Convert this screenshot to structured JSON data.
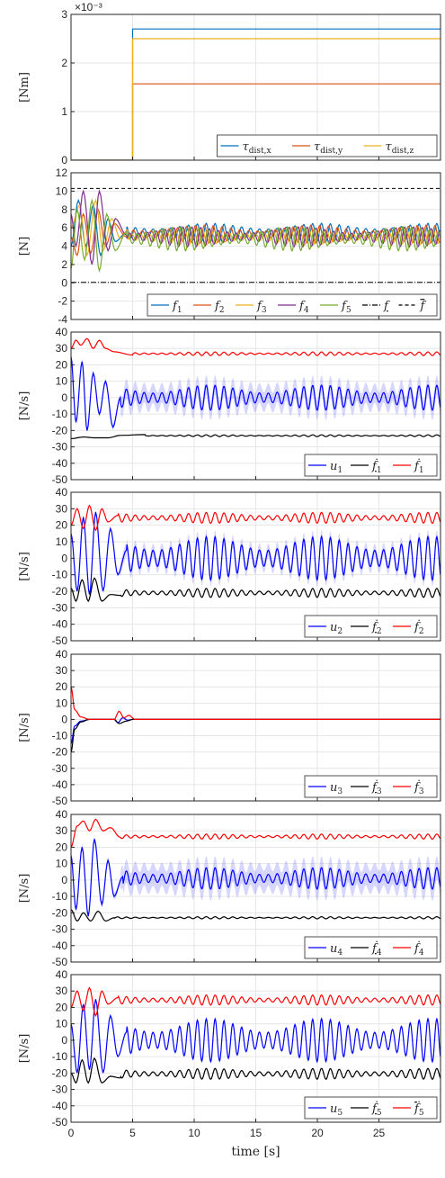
{
  "figure": {
    "xlabel": "time [s]",
    "xticks": [
      "0",
      "5",
      "10",
      "15",
      "20",
      "25"
    ],
    "xlim": [
      0,
      30
    ]
  },
  "chart_data": [
    {
      "type": "line",
      "panel": "torque",
      "ylabel": "[Nm]",
      "exponent_label": "×10⁻³",
      "ylim": [
        0,
        3
      ],
      "yticks": [
        "0",
        "1",
        "2",
        "3"
      ],
      "grid": true,
      "legend": "bottom-right",
      "series": [
        {
          "name": "τdist,x",
          "legend_main": "τ",
          "legend_sub": "dist,x",
          "color": "#0072BD",
          "x": [
            0,
            5,
            5,
            30
          ],
          "y": [
            0,
            0,
            2.7,
            2.7
          ]
        },
        {
          "name": "τdist,y",
          "legend_main": "τ",
          "legend_sub": "dist,y",
          "color": "#D95319",
          "x": [
            0,
            5,
            5,
            30
          ],
          "y": [
            0,
            0,
            1.57,
            1.57
          ]
        },
        {
          "name": "τdist,z",
          "legend_main": "τ",
          "legend_sub": "dist,z",
          "color": "#EDB120",
          "x": [
            0,
            5,
            5,
            30
          ],
          "y": [
            0,
            0,
            2.5,
            2.5
          ]
        }
      ]
    },
    {
      "type": "line",
      "panel": "forces",
      "ylabel": "[N]",
      "ylim": [
        -4,
        12
      ],
      "yticks": [
        "-4",
        "-2",
        "0",
        "2",
        "4",
        "6",
        "8",
        "10",
        "12"
      ],
      "grid": true,
      "legend": "bottom-right",
      "bounds": {
        "upper": 10.3,
        "lower": 0.05
      },
      "series": [
        {
          "name": "f1",
          "legend_main": "f",
          "legend_sub": "1",
          "color": "#0072BD",
          "pre": [
            [
              0,
              4
            ],
            [
              0.6,
              9
            ],
            [
              1.2,
              4
            ],
            [
              1.8,
              8.5
            ],
            [
              2.4,
              3
            ],
            [
              3,
              7
            ],
            [
              3.6,
              4.5
            ],
            [
              4.5,
              5.5
            ]
          ],
          "mean": 5.5,
          "amp": 0.9,
          "period": 0.72,
          "phase": 0
        },
        {
          "name": "f2",
          "legend_main": "f",
          "legend_sub": "2",
          "color": "#D95319",
          "pre": [
            [
              0,
              5
            ],
            [
              0.5,
              3
            ],
            [
              1,
              7.5
            ],
            [
              1.6,
              3.2
            ],
            [
              2.2,
              8
            ],
            [
              2.8,
              4
            ],
            [
              3.5,
              6.5
            ],
            [
              4.5,
              5
            ]
          ],
          "mean": 5.3,
          "amp": 0.9,
          "period": 0.72,
          "phase": 1.3
        },
        {
          "name": "f3",
          "legend_main": "f",
          "legend_sub": "3",
          "color": "#EDB120",
          "pre": [
            [
              0,
              6
            ],
            [
              0.7,
              8.5
            ],
            [
              1.3,
              3
            ],
            [
              2,
              9
            ],
            [
              2.6,
              3.5
            ],
            [
              3.3,
              7
            ],
            [
              4,
              4.8
            ],
            [
              4.6,
              5.8
            ]
          ],
          "mean": 5.0,
          "amp": 0.8,
          "period": 0.72,
          "phase": 2.6
        },
        {
          "name": "f4",
          "legend_main": "f",
          "legend_sub": "4",
          "color": "#7E2F8E",
          "pre": [
            [
              0,
              7.5
            ],
            [
              0.4,
              4
            ],
            [
              1,
              10
            ],
            [
              1.7,
              2
            ],
            [
              2.3,
              10
            ],
            [
              3,
              3.5
            ],
            [
              3.6,
              7
            ],
            [
              4.5,
              5.2
            ]
          ],
          "mean": 5.0,
          "amp": 1.0,
          "period": 0.72,
          "phase": 3.9
        },
        {
          "name": "f5",
          "legend_main": "f",
          "legend_sub": "5",
          "color": "#77AC30",
          "pre": [
            [
              0,
              1.5
            ],
            [
              0.5,
              8
            ],
            [
              1.1,
              2.5
            ],
            [
              1.7,
              9
            ],
            [
              2.3,
              1.3
            ],
            [
              2.9,
              7.5
            ],
            [
              3.6,
              3.5
            ],
            [
              4.5,
              5.5
            ]
          ],
          "mean": 4.8,
          "amp": 1.2,
          "period": 0.72,
          "phase": 5.2
        }
      ],
      "bound_legend": [
        {
          "name": "f lower",
          "legend_main": "f",
          "style": "dashdot",
          "underline": true
        },
        {
          "name": "f upper",
          "legend_main": "f",
          "style": "dashed",
          "overline": true
        }
      ]
    },
    {
      "type": "line",
      "panel": "u1",
      "ylabel": "[N/s]",
      "ylim": [
        -50,
        40
      ],
      "yticks": [
        "-50",
        "-40",
        "-30",
        "-20",
        "-10",
        "0",
        "10",
        "20",
        "30",
        "40"
      ],
      "grid": true,
      "legend": "bottom-right",
      "series": [
        {
          "name": "u1",
          "legend_main": "u",
          "legend_sub": "1",
          "color": "#0000FF",
          "mean": 0,
          "amp": 7,
          "period": 0.72,
          "band": 6,
          "pre": [
            [
              0,
              25
            ],
            [
              0.4,
              -15
            ],
            [
              0.9,
              22
            ],
            [
              1.3,
              -20
            ],
            [
              1.8,
              15
            ],
            [
              2.3,
              -10
            ],
            [
              2.8,
              10
            ],
            [
              3.4,
              -18
            ],
            [
              4,
              0
            ]
          ]
        },
        {
          "name": "f1 dot lower",
          "legend_main": "ḟ",
          "legend_sub": "1",
          "underline": true,
          "color": "#000000",
          "mean": -23.2,
          "amp": 0.5,
          "period": 0.72,
          "pre": [
            [
              0,
              -25
            ],
            [
              1,
              -24
            ],
            [
              2,
              -24.5
            ],
            [
              3,
              -24.5
            ],
            [
              4,
              -23
            ],
            [
              6,
              -22.5
            ]
          ]
        },
        {
          "name": "f1 dot upper",
          "legend_main": "ḟ",
          "legend_sub": "1",
          "color": "#FF0000",
          "mean": 26.8,
          "amp": 1,
          "period": 0.72,
          "pre": [
            [
              0,
              30
            ],
            [
              0.4,
              35
            ],
            [
              0.8,
              32
            ],
            [
              1.3,
              36
            ],
            [
              1.8,
              30
            ],
            [
              2.3,
              35
            ],
            [
              2.8,
              30
            ],
            [
              3.5,
              28
            ],
            [
              5,
              26
            ]
          ]
        }
      ]
    },
    {
      "type": "line",
      "panel": "u2",
      "ylabel": "[N/s]",
      "ylim": [
        -50,
        40
      ],
      "yticks": [
        "-50",
        "-40",
        "-30",
        "-20",
        "-10",
        "0",
        "10",
        "20",
        "30",
        "40"
      ],
      "grid": true,
      "legend": "bottom-right",
      "series": [
        {
          "name": "u2",
          "legend_main": "u",
          "legend_sub": "2",
          "color": "#0000FF",
          "mean": 0,
          "amp": 12,
          "period": 0.72,
          "band": 4,
          "pre": [
            [
              0,
              15
            ],
            [
              0.5,
              -20
            ],
            [
              1,
              25
            ],
            [
              1.5,
              -22
            ],
            [
              2,
              28
            ],
            [
              2.6,
              -20
            ],
            [
              3.2,
              18
            ],
            [
              3.8,
              -10
            ],
            [
              4.5,
              5
            ]
          ]
        },
        {
          "name": "f2 dot lower",
          "legend_main": "ḟ",
          "legend_sub": "2",
          "underline": true,
          "color": "#000000",
          "mean": -21,
          "amp": 2.5,
          "period": 0.72,
          "pre": [
            [
              0,
              -18
            ],
            [
              0.4,
              -26
            ],
            [
              0.9,
              -13
            ],
            [
              1.4,
              -26
            ],
            [
              1.9,
              -12
            ],
            [
              2.5,
              -26
            ],
            [
              3.2,
              -22
            ],
            [
              4,
              -22.5
            ]
          ]
        },
        {
          "name": "f2 dot upper",
          "legend_main": "ḟ",
          "legend_sub": "2",
          "color": "#FF0000",
          "mean": 24.5,
          "amp": 3,
          "period": 0.72,
          "pre": [
            [
              0,
              20
            ],
            [
              0.5,
              30
            ],
            [
              1,
              18
            ],
            [
              1.5,
              32
            ],
            [
              2,
              17
            ],
            [
              2.5,
              30
            ],
            [
              3,
              22
            ],
            [
              3.8,
              26
            ]
          ]
        }
      ]
    },
    {
      "type": "line",
      "panel": "u3",
      "ylabel": "[N/s]",
      "ylim": [
        -50,
        40
      ],
      "yticks": [
        "-50",
        "-40",
        "-30",
        "-20",
        "-10",
        "0",
        "10",
        "20",
        "30",
        "40"
      ],
      "grid": true,
      "legend": "bottom-right",
      "series": [
        {
          "name": "u3",
          "legend_main": "u",
          "legend_sub": "3",
          "color": "#0000FF",
          "mean": 0,
          "amp": 0,
          "period": 0.72,
          "pre": [
            [
              0,
              -15
            ],
            [
              0.3,
              -4
            ],
            [
              0.8,
              -1
            ],
            [
              1.5,
              0
            ],
            [
              3.5,
              0
            ],
            [
              3.8,
              -2
            ],
            [
              4.2,
              1
            ],
            [
              4.6,
              -0.5
            ],
            [
              5,
              0
            ]
          ]
        },
        {
          "name": "f3 dot lower",
          "legend_main": "ḟ",
          "legend_sub": "3",
          "underline": true,
          "color": "#000000",
          "mean": 0,
          "amp": 0,
          "period": 0.72,
          "pre": [
            [
              0,
              -20
            ],
            [
              0.3,
              -6
            ],
            [
              0.8,
              -1.5
            ],
            [
              1.5,
              0
            ],
            [
              3.5,
              0
            ],
            [
              3.9,
              -2.5
            ],
            [
              4.5,
              -1
            ],
            [
              5,
              0
            ]
          ]
        },
        {
          "name": "f3 dot upper",
          "legend_main": "ḟ",
          "legend_sub": "3",
          "color": "#FF0000",
          "mean": 0,
          "amp": 0,
          "period": 0.72,
          "pre": [
            [
              0,
              20
            ],
            [
              0.3,
              6
            ],
            [
              0.8,
              1.5
            ],
            [
              1.5,
              0
            ],
            [
              3.5,
              0
            ],
            [
              3.9,
              5
            ],
            [
              4.3,
              1
            ],
            [
              4.7,
              2.5
            ],
            [
              5.2,
              0
            ]
          ]
        }
      ]
    },
    {
      "type": "line",
      "panel": "u4",
      "ylabel": "[N/s]",
      "ylim": [
        -50,
        40
      ],
      "yticks": [
        "-50",
        "-40",
        "-30",
        "-20",
        "-10",
        "0",
        "10",
        "20",
        "30",
        "40"
      ],
      "grid": true,
      "legend": "bottom-right",
      "series": [
        {
          "name": "u4",
          "legend_main": "u",
          "legend_sub": "4",
          "color": "#0000FF",
          "mean": 1,
          "amp": 6,
          "period": 0.72,
          "band": 7,
          "pre": [
            [
              0,
              15
            ],
            [
              0.4,
              -18
            ],
            [
              0.9,
              20
            ],
            [
              1.4,
              -22
            ],
            [
              1.9,
              25
            ],
            [
              2.5,
              -15
            ],
            [
              3,
              12
            ],
            [
              3.5,
              -10
            ],
            [
              4.2,
              2
            ]
          ]
        },
        {
          "name": "f4 dot lower",
          "legend_main": "ḟ",
          "legend_sub": "4",
          "underline": true,
          "color": "#000000",
          "mean": -23,
          "amp": 0.6,
          "period": 0.72,
          "pre": [
            [
              0,
              -18
            ],
            [
              0.5,
              -25
            ],
            [
              1,
              -20
            ],
            [
              1.6,
              -25
            ],
            [
              2.2,
              -19
            ],
            [
              2.8,
              -25
            ],
            [
              3.5,
              -23
            ]
          ]
        },
        {
          "name": "f4 dot upper",
          "legend_main": "ḟ",
          "legend_sub": "4",
          "color": "#FF0000",
          "mean": 26.5,
          "amp": 1.4,
          "period": 0.72,
          "pre": [
            [
              0,
              20
            ],
            [
              0.5,
              33
            ],
            [
              1,
              36
            ],
            [
              1.5,
              30
            ],
            [
              2,
              37
            ],
            [
              2.6,
              30
            ],
            [
              3.2,
              32
            ],
            [
              4,
              26
            ]
          ]
        }
      ]
    },
    {
      "type": "line",
      "panel": "u5",
      "ylabel": "[N/s]",
      "ylim": [
        -50,
        40
      ],
      "yticks": [
        "-50",
        "-40",
        "-30",
        "-20",
        "-10",
        "0",
        "10",
        "20",
        "30",
        "40"
      ],
      "grid": true,
      "legend": "bottom-right",
      "series": [
        {
          "name": "u5",
          "legend_main": "u",
          "legend_sub": "5",
          "color": "#0000FF",
          "mean": 0,
          "amp": 12,
          "period": 0.72,
          "pre": [
            [
              0,
              10
            ],
            [
              0.5,
              -20
            ],
            [
              1,
              22
            ],
            [
              1.5,
              -18
            ],
            [
              2,
              25
            ],
            [
              2.6,
              -20
            ],
            [
              3.2,
              15
            ],
            [
              3.8,
              -10
            ],
            [
              4.5,
              5
            ]
          ]
        },
        {
          "name": "f5 dot lower",
          "legend_main": "ḟ",
          "legend_sub": "5",
          "underline": true,
          "color": "#000000",
          "mean": -20.5,
          "amp": 3,
          "period": 0.72,
          "pre": [
            [
              0,
              -20
            ],
            [
              0.4,
              -26
            ],
            [
              0.9,
              -12
            ],
            [
              1.4,
              -26
            ],
            [
              1.9,
              -11
            ],
            [
              2.5,
              -26
            ],
            [
              3.2,
              -22
            ],
            [
              4,
              -23
            ]
          ]
        },
        {
          "name": "f5 dot upper",
          "legend_main": "ḟ",
          "legend_sub": "5",
          "overline": true,
          "color": "#FF0000",
          "mean": 24.5,
          "amp": 2.8,
          "period": 0.72,
          "pre": [
            [
              0,
              20
            ],
            [
              0.5,
              30
            ],
            [
              1,
              18
            ],
            [
              1.5,
              32
            ],
            [
              2,
              15
            ],
            [
              2.5,
              30
            ],
            [
              3,
              22
            ],
            [
              3.8,
              26
            ]
          ]
        }
      ]
    }
  ]
}
